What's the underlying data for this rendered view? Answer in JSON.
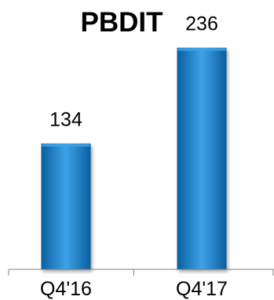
{
  "chart_data": {
    "type": "bar",
    "title": "PBDIT",
    "categories": [
      "Q4'16",
      "Q4'17"
    ],
    "values": [
      134,
      236
    ],
    "data_labels": [
      "134",
      "236"
    ],
    "xlabel": "",
    "ylabel": "",
    "ylim": [
      0,
      250
    ],
    "grid": false,
    "legend": "none",
    "colors": {
      "bar_fill": "#1E88D2",
      "bar_fill_dark": "#0A5E9E",
      "bar_fill_light": "#3FA2E8",
      "axis": "#7F7F7F"
    }
  }
}
